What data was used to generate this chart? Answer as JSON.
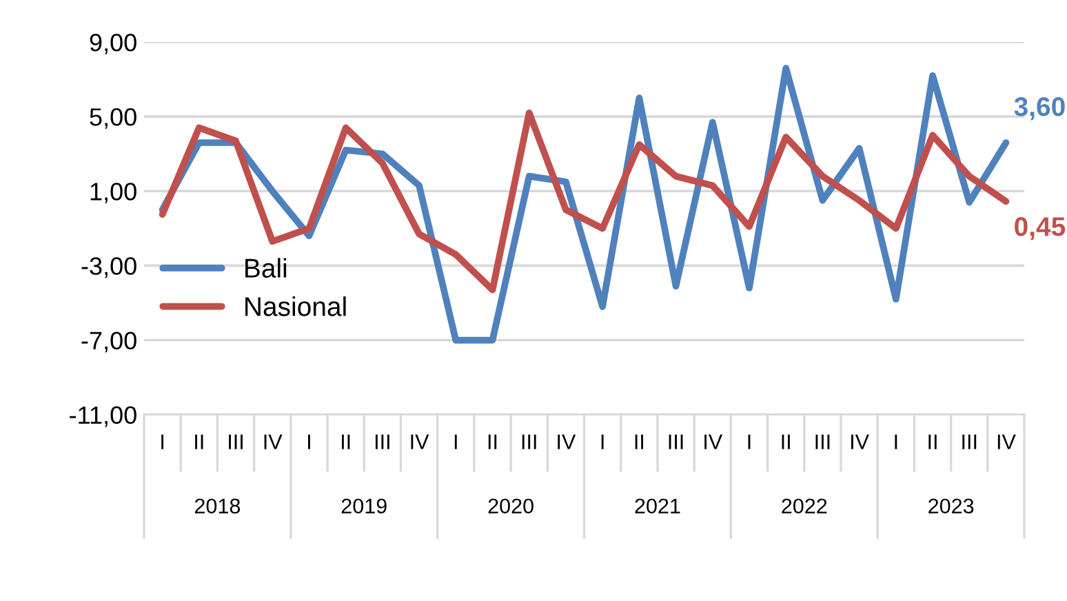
{
  "chart_data": {
    "type": "line",
    "categories": [
      "I",
      "II",
      "III",
      "IV",
      "I",
      "II",
      "III",
      "IV",
      "I",
      "II",
      "III",
      "IV",
      "I",
      "II",
      "III",
      "IV",
      "I",
      "II",
      "III",
      "IV",
      "I",
      "II",
      "III",
      "IV"
    ],
    "annotations": [
      "2018",
      "2019",
      "2020",
      "2021",
      "2022",
      "2023"
    ],
    "series": [
      {
        "name": "Bali",
        "color": "#4f81bd",
        "values": [
          0.0,
          3.6,
          3.6,
          1.0,
          -1.4,
          3.2,
          3.0,
          1.3,
          -7.0,
          -7.0,
          1.8,
          1.5,
          -5.2,
          6.0,
          -4.1,
          4.7,
          -4.2,
          7.6,
          0.5,
          3.3,
          -4.8,
          7.2,
          0.4,
          3.6
        ],
        "value_labels": [
          null,
          null,
          null,
          null,
          null,
          null,
          null,
          null,
          null,
          null,
          null,
          null,
          null,
          null,
          null,
          null,
          null,
          null,
          null,
          null,
          null,
          null,
          null,
          "3,60"
        ]
      },
      {
        "name": "Nasional",
        "color": "#c0504d",
        "values": [
          -0.25,
          4.4,
          3.7,
          -1.7,
          -1.0,
          4.4,
          2.5,
          -1.3,
          -2.4,
          -4.3,
          5.2,
          0.0,
          -1.0,
          3.5,
          1.8,
          1.3,
          -0.9,
          3.9,
          1.8,
          0.5,
          -1.0,
          4.0,
          1.8,
          0.45
        ],
        "value_labels": [
          null,
          null,
          null,
          null,
          null,
          null,
          null,
          null,
          null,
          null,
          null,
          null,
          null,
          null,
          null,
          null,
          null,
          null,
          null,
          null,
          null,
          null,
          null,
          "0,45"
        ]
      }
    ],
    "ylim": [
      -11,
      9
    ],
    "yticks": [
      {
        "value": 9,
        "label": "9,00"
      },
      {
        "value": 5,
        "label": "5,00"
      },
      {
        "value": 1,
        "label": "1,00"
      },
      {
        "value": -3,
        "label": "-3,00"
      },
      {
        "value": -7,
        "label": "-7,00"
      },
      {
        "value": -11,
        "label": "-11,00"
      }
    ],
    "grid": "y",
    "legend": "bottom left",
    "marker": "none",
    "line_style": "solid"
  }
}
